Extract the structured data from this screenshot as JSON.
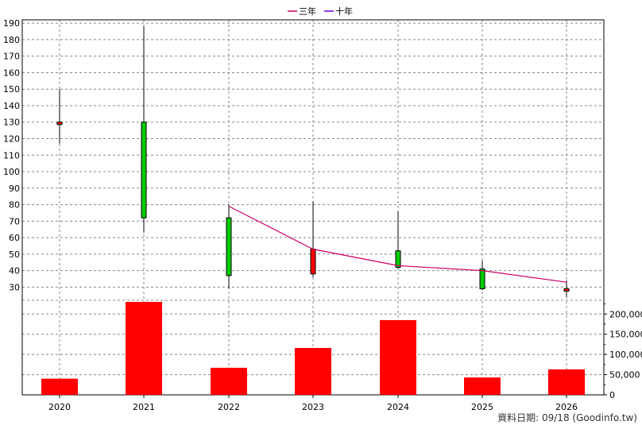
{
  "chart_data": {
    "type": "candlestick",
    "legend": [
      {
        "name": "三年",
        "color": "#cc0066"
      },
      {
        "name": "十年",
        "color": "#6600cc"
      }
    ],
    "legend_position": "top-center",
    "categories": [
      "2020",
      "2021",
      "2022",
      "2023",
      "2024",
      "2025",
      "2026"
    ],
    "price": {
      "ylim": [
        22,
        192
      ],
      "ticks": [
        30,
        40,
        50,
        60,
        70,
        80,
        90,
        100,
        110,
        120,
        130,
        140,
        150,
        160,
        170,
        180,
        190
      ],
      "candles": [
        {
          "open": 130,
          "close": 129,
          "high": 150,
          "low": 117,
          "direction": "down"
        },
        {
          "open": 72,
          "close": 130,
          "high": 188,
          "low": 63,
          "direction": "up"
        },
        {
          "open": 37,
          "close": 72,
          "high": 80,
          "low": 29,
          "direction": "up"
        },
        {
          "open": 53,
          "close": 38,
          "high": 82,
          "low": 36,
          "direction": "down"
        },
        {
          "open": 42,
          "close": 52,
          "high": 76,
          "low": 41,
          "direction": "up"
        },
        {
          "open": 29,
          "close": 41,
          "high": 46,
          "low": 28,
          "direction": "up"
        },
        {
          "open": 29,
          "close": 28,
          "high": 34,
          "low": 24,
          "direction": "down"
        }
      ],
      "three_year_line": [
        {
          "x": "2022",
          "y": 79
        },
        {
          "x": "2023",
          "y": 53
        },
        {
          "x": "2024",
          "y": 43
        },
        {
          "x": "2025",
          "y": 40
        },
        {
          "x": "2026",
          "y": 33
        }
      ]
    },
    "volume": {
      "ylim": [
        0,
        230000
      ],
      "ticks": [
        0,
        50000,
        100000,
        150000,
        200000
      ],
      "tick_labels": [
        "0",
        "50,000",
        "100,000",
        "150,000",
        "200,000"
      ],
      "values": [
        40000,
        230000,
        67000,
        116000,
        185000,
        43000,
        63000
      ]
    },
    "grid": true,
    "colors": {
      "up": "#00cc00",
      "down": "#ff0000",
      "volume": "#ff0000"
    }
  },
  "footer": "資料日期: 09/18  (Goodinfo.tw)"
}
